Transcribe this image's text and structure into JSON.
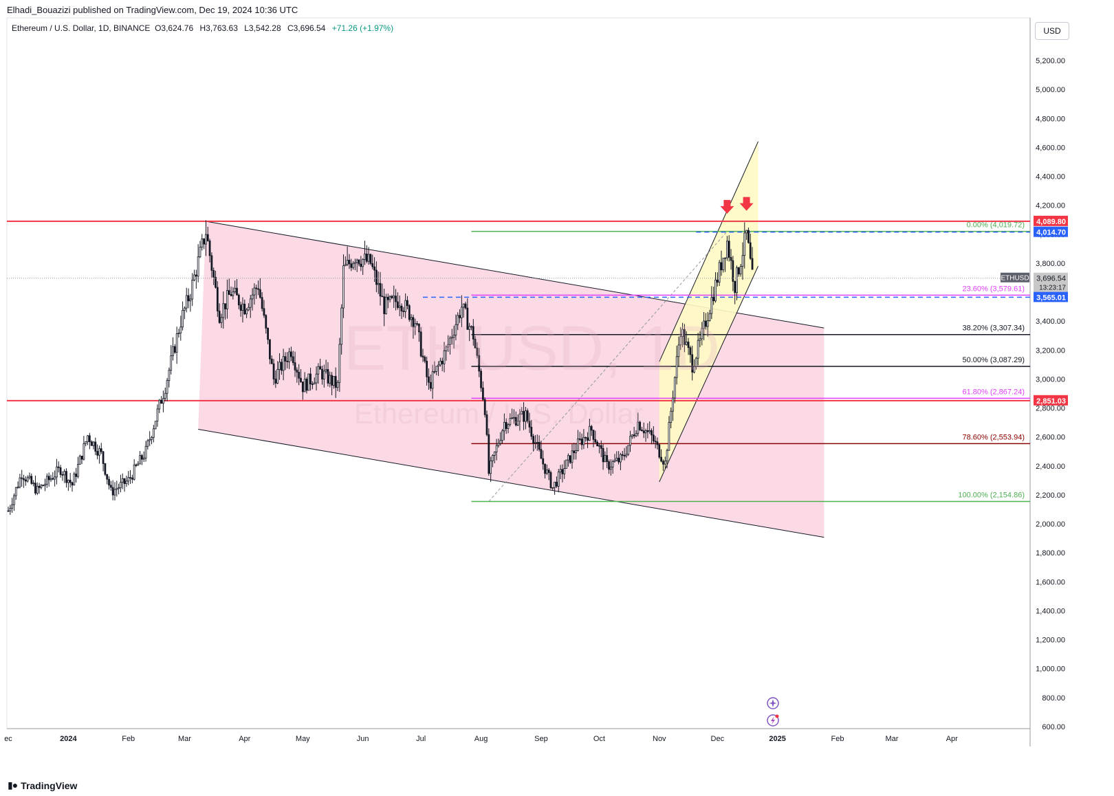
{
  "header": {
    "publisher": "Elhadi_Bouazizi published on TradingView.com, Dec 19, 2024 10:36 UTC"
  },
  "legend": {
    "symbol": "Ethereum / U.S. Dollar, 1D, BINANCE",
    "o_label": "O",
    "o": "3,624.76",
    "h_label": "H",
    "h": "3,763.63",
    "l_label": "L",
    "l": "3,542.28",
    "c_label": "C",
    "c": "3,696.54",
    "change": "+71.26 (+1.97%)"
  },
  "currency": "USD",
  "watermark": {
    "main": "ETHUSD, 1D",
    "sub": "Ethereum / U.S. Dollar"
  },
  "brand": "TradingView",
  "colors": {
    "up": "#089981",
    "down": "#131722",
    "candle": "#131722",
    "resistance": "#f23645",
    "support_green": "#4caf50",
    "magenta": "#e040fb",
    "dark_red": "#8b0000",
    "dashed_blue": "#2962ff",
    "channel_fill": "#f8bbd0",
    "rising_fill": "#fff9c4",
    "rising_orange": "#ffcc80"
  },
  "chart_data": {
    "type": "candlestick",
    "ylim": [
      600,
      5300
    ],
    "yticks": [
      600,
      800,
      1000,
      1200,
      1400,
      1600,
      1800,
      2000,
      2200,
      2400,
      2600,
      2800,
      3000,
      3200,
      3400,
      3600,
      3800,
      4000,
      4200,
      4400,
      4600,
      4800,
      5000,
      5200
    ],
    "ytick_labels": [
      "600.00",
      "800.00",
      "1,000.00",
      "1,200.00",
      "1,400.00",
      "1,600.00",
      "1,800.00",
      "2,000.00",
      "2,200.00",
      "2,400.00",
      "2,600.00",
      "2,800.00",
      "3,000.00",
      "3,200.00",
      "3,400.00",
      "3,600.00",
      "3,800.00",
      "4,000.00",
      "4,200.00",
      "4,400.00",
      "4,600.00",
      "4,800.00",
      "5,000.00",
      "5,200.00"
    ],
    "x_start": "2023-12-01",
    "x_end": "2025-04-30",
    "xticks": [
      {
        "date": "2023-12-01",
        "label": "ec"
      },
      {
        "date": "2024-01-01",
        "label": "2024"
      },
      {
        "date": "2024-02-01",
        "label": "Feb"
      },
      {
        "date": "2024-03-01",
        "label": "Mar"
      },
      {
        "date": "2024-04-01",
        "label": "Apr"
      },
      {
        "date": "2024-05-01",
        "label": "May"
      },
      {
        "date": "2024-06-01",
        "label": "Jun"
      },
      {
        "date": "2024-07-01",
        "label": "Jul"
      },
      {
        "date": "2024-08-01",
        "label": "Aug"
      },
      {
        "date": "2024-09-01",
        "label": "Sep"
      },
      {
        "date": "2024-10-01",
        "label": "Oct"
      },
      {
        "date": "2024-11-01",
        "label": "Nov"
      },
      {
        "date": "2024-12-01",
        "label": "Dec"
      },
      {
        "date": "2025-01-01",
        "label": "2025"
      },
      {
        "date": "2025-02-01",
        "label": "Feb"
      },
      {
        "date": "2025-03-01",
        "label": "Mar"
      },
      {
        "date": "2025-04-01",
        "label": "Apr"
      }
    ],
    "price_path": [
      [
        "2023-12-01",
        2090
      ],
      [
        "2023-12-08",
        2350
      ],
      [
        "2023-12-16",
        2230
      ],
      [
        "2023-12-28",
        2380
      ],
      [
        "2024-01-03",
        2270
      ],
      [
        "2024-01-11",
        2610
      ],
      [
        "2024-01-18",
        2480
      ],
      [
        "2024-01-23",
        2220
      ],
      [
        "2024-02-01",
        2300
      ],
      [
        "2024-02-10",
        2500
      ],
      [
        "2024-02-20",
        2950
      ],
      [
        "2024-02-28",
        3400
      ],
      [
        "2024-03-04",
        3600
      ],
      [
        "2024-03-12",
        4020
      ],
      [
        "2024-03-19",
        3450
      ],
      [
        "2024-03-25",
        3600
      ],
      [
        "2024-04-01",
        3500
      ],
      [
        "2024-04-08",
        3650
      ],
      [
        "2024-04-16",
        3000
      ],
      [
        "2024-04-25",
        3200
      ],
      [
        "2024-05-01",
        2950
      ],
      [
        "2024-05-10",
        3050
      ],
      [
        "2024-05-19",
        2950
      ],
      [
        "2024-05-22",
        3750
      ],
      [
        "2024-05-28",
        3850
      ],
      [
        "2024-06-05",
        3800
      ],
      [
        "2024-06-12",
        3500
      ],
      [
        "2024-06-20",
        3550
      ],
      [
        "2024-06-28",
        3400
      ],
      [
        "2024-07-05",
        2950
      ],
      [
        "2024-07-14",
        3200
      ],
      [
        "2024-07-22",
        3500
      ],
      [
        "2024-07-28",
        3300
      ],
      [
        "2024-08-03",
        2800
      ],
      [
        "2024-08-05",
        2350
      ],
      [
        "2024-08-13",
        2700
      ],
      [
        "2024-08-24",
        2750
      ],
      [
        "2024-09-01",
        2450
      ],
      [
        "2024-09-07",
        2250
      ],
      [
        "2024-09-20",
        2550
      ],
      [
        "2024-09-27",
        2650
      ],
      [
        "2024-10-05",
        2400
      ],
      [
        "2024-10-13",
        2450
      ],
      [
        "2024-10-21",
        2700
      ],
      [
        "2024-10-28",
        2600
      ],
      [
        "2024-11-04",
        2420
      ],
      [
        "2024-11-08",
        2900
      ],
      [
        "2024-11-12",
        3350
      ],
      [
        "2024-11-18",
        3100
      ],
      [
        "2024-11-22",
        3250
      ],
      [
        "2024-11-28",
        3550
      ],
      [
        "2024-12-06",
        3950
      ],
      [
        "2024-12-10",
        3650
      ],
      [
        "2024-12-16",
        4000
      ],
      [
        "2024-12-19",
        3696
      ]
    ],
    "horizontal_lines": [
      {
        "price": 4089.8,
        "color": "#f23645",
        "label": "4,089.80",
        "tag_color": "#f23645"
      },
      {
        "price": 2851.03,
        "color": "#f23645",
        "label": "2,851.03",
        "tag_color": "#f23645"
      },
      {
        "price": 4014.7,
        "color": "#2962ff",
        "label": "4,014.70",
        "tag_color": "#2962ff",
        "dashed": true
      },
      {
        "price": 3565.01,
        "color": "#2962ff",
        "label": "3,565.01",
        "tag_color": "#2962ff",
        "dashed": true
      }
    ],
    "current_price": {
      "label": "3,696.54",
      "countdown": "13:23:17",
      "symbol": "ETHUSD",
      "price": 3696.54
    },
    "fibonacci": [
      {
        "level": "0.00%",
        "value": "(4,019.72)",
        "price": 4019.72,
        "color": "#4caf50"
      },
      {
        "level": "23.60%",
        "value": "(3,579.61)",
        "price": 3579.61,
        "color": "#e040fb"
      },
      {
        "level": "38.20%",
        "value": "(3,307.34)",
        "price": 3307.34,
        "color": "#131722"
      },
      {
        "level": "50.00%",
        "value": "(3,087.29)",
        "price": 3087.29,
        "color": "#131722"
      },
      {
        "level": "61.80%",
        "value": "(2,867.24)",
        "price": 2867.24,
        "color": "#e040fb"
      },
      {
        "level": "78.60%",
        "value": "(2,553.94)",
        "price": 2553.94,
        "color": "#8b0000"
      },
      {
        "level": "100.00%",
        "value": "(2,154.86)",
        "price": 2154.86,
        "color": "#4caf50"
      }
    ],
    "descending_channel": {
      "upper": [
        [
          "2024-03-12",
          4089
        ],
        [
          "2025-01-25",
          3353
        ]
      ],
      "lower": [
        [
          "2024-03-08",
          2653
        ],
        [
          "2025-01-25",
          1907
        ]
      ]
    },
    "rising_channel": {
      "upper": [
        [
          "2024-11-01",
          3120
        ],
        [
          "2024-12-22",
          4640
        ]
      ],
      "lower": [
        [
          "2024-11-01",
          2290
        ],
        [
          "2024-12-22",
          3780
        ]
      ]
    },
    "arrows": [
      {
        "date": "2024-12-06",
        "price": 4180,
        "color": "#f23645"
      },
      {
        "date": "2024-12-16",
        "price": 4200,
        "color": "#f23645"
      }
    ]
  }
}
